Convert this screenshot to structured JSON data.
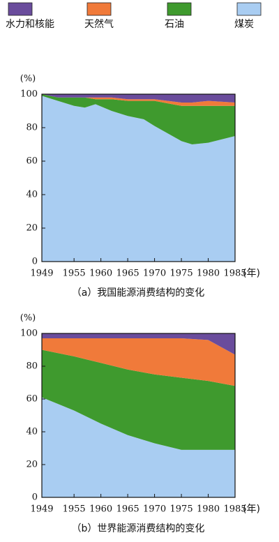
{
  "chart_data": [
    {
      "type": "area",
      "stacked": true,
      "title": "（a）我国能源消费结构的变化",
      "y_label": "(%)",
      "x_label": "(年)",
      "x": [
        1949,
        1952,
        1955,
        1957,
        1959,
        1962,
        1965,
        1968,
        1970,
        1975,
        1977,
        1980,
        1985
      ],
      "series": [
        {
          "name": "煤炭",
          "color": "#a9cdf2",
          "values": [
            99,
            96,
            93,
            92,
            94,
            90,
            87,
            85,
            81,
            72,
            70,
            71,
            75
          ]
        },
        {
          "name": "石油",
          "color": "#3f9a2e",
          "values": [
            1,
            2,
            5,
            6,
            3,
            7,
            9,
            11,
            15,
            21,
            23,
            22,
            18
          ]
        },
        {
          "name": "天然气",
          "color": "#f07a3a",
          "values": [
            0,
            0,
            0,
            0,
            1,
            1,
            1,
            1,
            1,
            2,
            2,
            3,
            2
          ]
        },
        {
          "name": "水力和核能",
          "color": "#6a4c9c",
          "values": [
            0,
            2,
            2,
            2,
            2,
            2,
            3,
            3,
            3,
            5,
            5,
            4,
            5
          ]
        }
      ],
      "xlim": [
        1949,
        1985
      ],
      "xticks": [
        1949,
        1955,
        1960,
        1965,
        1970,
        1975,
        1980,
        1985
      ],
      "ylim": [
        0,
        100
      ],
      "yticks": [
        0,
        20,
        40,
        60,
        80,
        100
      ]
    },
    {
      "type": "area",
      "stacked": true,
      "title": "（b）世界能源消费结构的变化",
      "y_label": "(%)",
      "x_label": "(年)",
      "x": [
        1949,
        1955,
        1960,
        1965,
        1970,
        1975,
        1980,
        1985
      ],
      "series": [
        {
          "color": "#a9cdf2",
          "values": [
            61,
            53,
            45,
            38,
            33,
            29,
            29,
            29
          ]
        },
        {
          "color": "#3f9a2e",
          "values": [
            29,
            33,
            37,
            40,
            42,
            44,
            42,
            39
          ]
        },
        {
          "color": "#f07a3a",
          "values": [
            7,
            11,
            15,
            19,
            22,
            24,
            25,
            19
          ]
        },
        {
          "color": "#6a4c9c",
          "values": [
            3,
            3,
            3,
            3,
            3,
            3,
            4,
            13
          ]
        }
      ],
      "xlim": [
        1949,
        1985
      ],
      "xticks": [
        1949,
        1955,
        1960,
        1965,
        1970,
        1975,
        1980,
        1985
      ],
      "ylim": [
        0,
        100
      ],
      "yticks": [
        0,
        20,
        40,
        60,
        80,
        100
      ]
    }
  ]
}
